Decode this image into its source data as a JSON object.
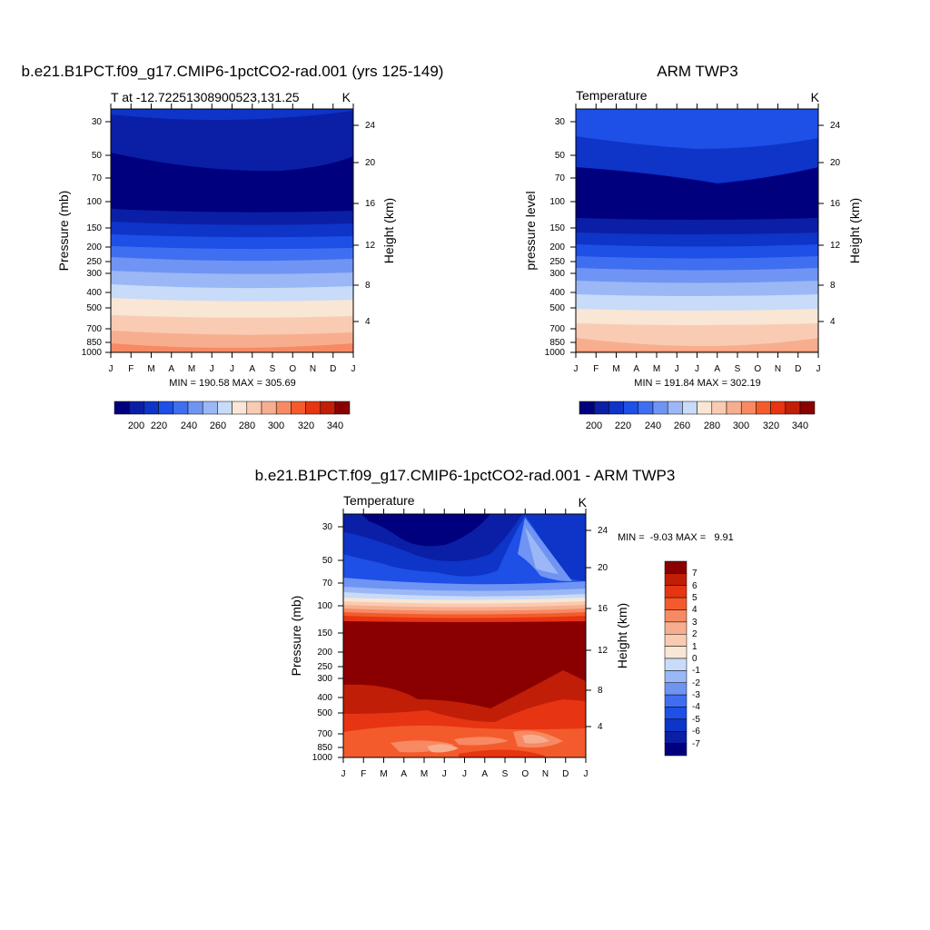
{
  "chart_data": [
    {
      "type": "heatmap",
      "title": "b.e21.B1PCT.f09_g17.CMIP6-1pctCO2-rad.001 (yrs 125-149)",
      "left_string": "T at -12.72251308900523,131.25",
      "right_string": "K",
      "ylabel": "Pressure (mb)",
      "ylabel_right": "Height (km)",
      "x_ticks": [
        "J",
        "F",
        "M",
        "A",
        "M",
        "J",
        "J",
        "A",
        "S",
        "O",
        "N",
        "D",
        "J"
      ],
      "y_ticks": [
        "30",
        "50",
        "70",
        "100",
        "150",
        "200",
        "250",
        "300",
        "400",
        "500",
        "700",
        "850",
        "1000"
      ],
      "y_ticks_right": [
        "24",
        "20",
        "16",
        "12",
        "8",
        "4"
      ],
      "min_max_label": "MIN = 190.58 MAX = 305.69",
      "colorbar": {
        "orientation": "horizontal",
        "levels": [
          "200",
          "220",
          "240",
          "260",
          "280",
          "300",
          "320",
          "340"
        ]
      }
    },
    {
      "type": "heatmap",
      "title": "ARM TWP3",
      "left_string": "Temperature",
      "right_string": "K",
      "ylabel": "pressure level",
      "ylabel_right": "Height (km)",
      "x_ticks": [
        "J",
        "F",
        "M",
        "A",
        "M",
        "J",
        "J",
        "A",
        "S",
        "O",
        "N",
        "D",
        "J"
      ],
      "y_ticks": [
        "30",
        "50",
        "70",
        "100",
        "150",
        "200",
        "250",
        "300",
        "400",
        "500",
        "700",
        "850",
        "1000"
      ],
      "y_ticks_right": [
        "24",
        "20",
        "16",
        "12",
        "8",
        "4"
      ],
      "min_max_label": "MIN = 191.84 MAX = 302.19",
      "colorbar": {
        "orientation": "horizontal",
        "levels": [
          "200",
          "220",
          "240",
          "260",
          "280",
          "300",
          "320",
          "340"
        ]
      }
    },
    {
      "type": "heatmap",
      "title": "b.e21.B1PCT.f09_g17.CMIP6-1pctCO2-rad.001 - ARM TWP3",
      "left_string": "Temperature",
      "right_string": "K",
      "ylabel": "Pressure (mb)",
      "ylabel_right": "Height (km)",
      "x_ticks": [
        "J",
        "F",
        "M",
        "A",
        "M",
        "J",
        "J",
        "A",
        "S",
        "O",
        "N",
        "D",
        "J"
      ],
      "y_ticks": [
        "30",
        "50",
        "70",
        "100",
        "150",
        "200",
        "250",
        "300",
        "400",
        "500",
        "700",
        "850",
        "1000"
      ],
      "y_ticks_right": [
        "24",
        "20",
        "16",
        "12",
        "8",
        "4"
      ],
      "min_max_label": "MIN =  -9.03 MAX =   9.91",
      "colorbar": {
        "orientation": "vertical",
        "levels": [
          "7",
          "6",
          "5",
          "4",
          "3",
          "2",
          "1",
          "0",
          "-1",
          "-2",
          "-3",
          "-4",
          "-5",
          "-6",
          "-7"
        ]
      }
    }
  ],
  "palette": {
    "abs": [
      "#00007f",
      "#0a1fa5",
      "#0e34c8",
      "#1e4fe6",
      "#3f6ff0",
      "#6f94f3",
      "#9bb7f5",
      "#c8dbf8",
      "#f9e6d4",
      "#f9cbb2",
      "#f7ae8f",
      "#f78a63",
      "#f45b2c",
      "#e73412",
      "#c11e07",
      "#8a0000"
    ],
    "diff": [
      "#00007f",
      "#0a1fa5",
      "#0e34c8",
      "#1e4fe6",
      "#3f6ff0",
      "#6f94f3",
      "#9bb7f5",
      "#c8dbf8",
      "#f9e6d4",
      "#f9cbb2",
      "#f7ae8f",
      "#f78a63",
      "#f45b2c",
      "#e73412",
      "#c11e07",
      "#8a0000"
    ]
  }
}
